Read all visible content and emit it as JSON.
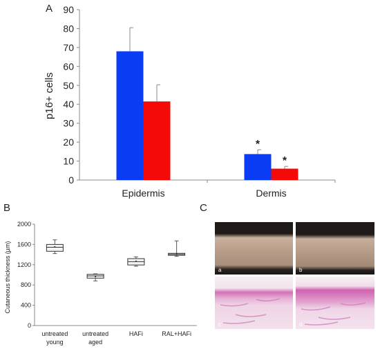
{
  "panels": {
    "A": "A",
    "B": "B",
    "C": "C"
  },
  "chart_data": [
    {
      "panel": "A",
      "type": "bar",
      "categories": [
        "Epidermis",
        "Dermis"
      ],
      "ylabel": "p16+ cells",
      "ylim": [
        0,
        90
      ],
      "yticks": [
        "0",
        "10",
        "20",
        "30",
        "40",
        "50",
        "60",
        "70",
        "80",
        "90"
      ],
      "grid": false,
      "series": [
        {
          "color": "#0a3cf5",
          "values": [
            68,
            13.7
          ],
          "errors": [
            12.5,
            2.3
          ],
          "markers": [
            "",
            "*"
          ]
        },
        {
          "color": "#f50a0a",
          "values": [
            41.5,
            6
          ],
          "errors": [
            8.8,
            1.2
          ],
          "markers": [
            "",
            "*"
          ]
        }
      ]
    },
    {
      "panel": "B",
      "type": "box",
      "ylabel": "Cutaneous thickness (µm)",
      "ylim": [
        0,
        2000
      ],
      "yticks": [
        "0",
        "400",
        "800",
        "1200",
        "1600",
        "2000"
      ],
      "categories": [
        "untreated\nyoung",
        "untreated\naged",
        "HAFi",
        "RAL+HAFi"
      ],
      "boxes": [
        {
          "min": 1420,
          "q1": 1465,
          "median": 1545,
          "q3": 1600,
          "max": 1690,
          "mean": 1555
        },
        {
          "min": 880,
          "q1": 935,
          "median": 980,
          "q3": 1010,
          "max": 1020,
          "mean": 965
        },
        {
          "min": 1170,
          "q1": 1195,
          "median": 1260,
          "q3": 1320,
          "max": 1355,
          "mean": 1270
        },
        {
          "min": 1365,
          "q1": 1385,
          "median": 1405,
          "q3": 1425,
          "max": 1670,
          "mean": 1410
        }
      ]
    }
  ],
  "photos": {
    "labels": [
      "a",
      "b",
      "c",
      "d"
    ]
  },
  "colors": {
    "axis": "#888888",
    "box_fill": "#f4f4f4",
    "stain_bg": "#f2e6ee",
    "stain_band": "#d67fbe",
    "skin": "#b59a86"
  }
}
